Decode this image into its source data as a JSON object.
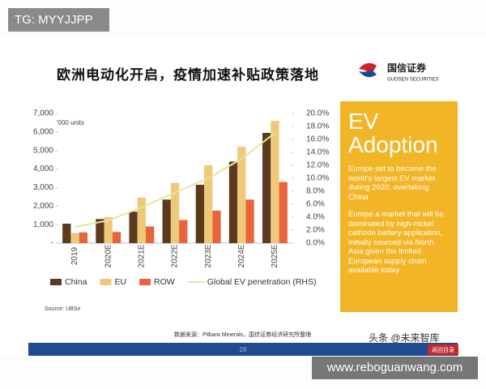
{
  "top_label": "TG: MYYJJPP",
  "slide": {
    "title": "欧洲电动化开启，疫情加速补贴政策落地",
    "logo_name": "国信证券",
    "logo_sub": "GUOSEN SECURITIES",
    "source_note": "Source: UBSe",
    "footer_source": "数据来源：Pilbara Minerals，国信证券经济研究所整理",
    "page_number": "28",
    "back_button": "返回目录",
    "watermark": "头条 @未来智库",
    "box": {
      "title_line1": "EV",
      "title_line2": "Adoption",
      "paragraph1": "Europe set to become the world's largest EV market during 2020, overtaking China",
      "paragraph2": "Europe a market that will be dominated by high-nickel cathode battery application, initially sourced via North Asia given the limited European supply chain available today"
    }
  },
  "bottom_url": "www.reboguanwang.com",
  "chart_data": {
    "type": "bar",
    "y_unit_label": "'000 units",
    "categories": [
      "2019",
      "2020E",
      "2021E",
      "2022E",
      "2023E",
      "2024E",
      "2025E"
    ],
    "series": [
      {
        "name": "China",
        "color": "#5b3a1e",
        "values": [
          1050,
          1300,
          1700,
          2350,
          3150,
          4400,
          5950
        ]
      },
      {
        "name": "EU",
        "color": "#f0c87a",
        "values": [
          550,
          1400,
          2450,
          3250,
          4200,
          5200,
          6600
        ]
      },
      {
        "name": "ROW",
        "color": "#e8643a",
        "values": [
          580,
          600,
          900,
          1250,
          1750,
          2350,
          3300
        ]
      },
      {
        "name": "Global EV penetration (RHS)",
        "color": "#e6e6a0",
        "axis": "y2",
        "type": "line",
        "values": [
          2.5,
          3.5,
          5.5,
          7.8,
          10,
          13,
          17
        ]
      }
    ],
    "ylim": [
      0,
      7000
    ],
    "yticks": [
      {
        "value": 0,
        "label": "-"
      },
      {
        "value": 1000,
        "label": "1,000"
      },
      {
        "value": 2000,
        "label": "2,000"
      },
      {
        "value": 3000,
        "label": "3,000"
      },
      {
        "value": 4000,
        "label": "4,000"
      },
      {
        "value": 5000,
        "label": "5,000"
      },
      {
        "value": 6000,
        "label": "6,000"
      },
      {
        "value": 7000,
        "label": "7,000"
      }
    ],
    "y2lim": [
      0,
      20
    ],
    "y2ticks": [
      {
        "value": 0,
        "label": "0.0%"
      },
      {
        "value": 2,
        "label": "2.0%"
      },
      {
        "value": 4,
        "label": "4.0%"
      },
      {
        "value": 6,
        "label": "6.0%"
      },
      {
        "value": 8,
        "label": "8.0%"
      },
      {
        "value": 10,
        "label": "10.0%"
      },
      {
        "value": 12,
        "label": "12.0%"
      },
      {
        "value": 14,
        "label": "14.0%"
      },
      {
        "value": 16,
        "label": "16.0%"
      },
      {
        "value": 18,
        "label": "18.0%"
      },
      {
        "value": 20,
        "label": "20.0%"
      }
    ]
  }
}
